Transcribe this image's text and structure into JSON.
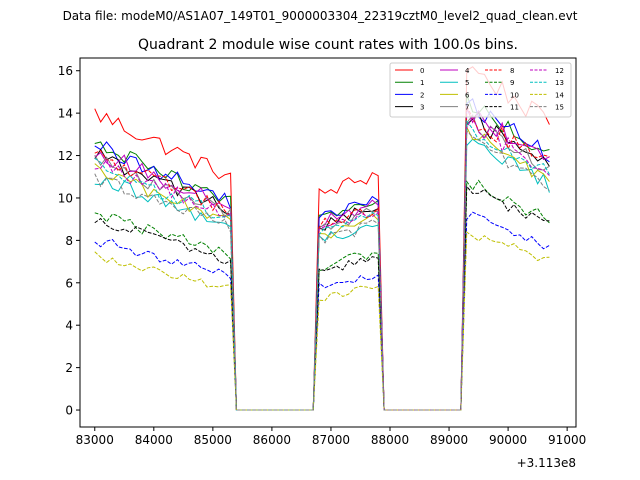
{
  "chart_data": {
    "type": "line",
    "suptitle": "Data file: modeM0/AS1A07_149T01_9000003304_22319cztM0_level2_quad_clean.evt",
    "title": "Quadrant 2 module wise count rates with 100.0s bins.",
    "xlabel": "",
    "ylabel": "",
    "x_offset_label": "+3.113e8",
    "xlim": [
      82750,
      91150
    ],
    "ylim": [
      -0.8,
      16.6
    ],
    "xticks": [
      83000,
      84000,
      85000,
      86000,
      87000,
      88000,
      89000,
      90000,
      91000
    ],
    "xtick_labels": [
      "83000",
      "84000",
      "85000",
      "86000",
      "87000",
      "88000",
      "89000",
      "90000",
      "91000"
    ],
    "yticks": [
      0,
      2,
      4,
      6,
      8,
      10,
      12,
      14,
      16
    ],
    "ytick_labels": [
      "0",
      "2",
      "4",
      "6",
      "8",
      "10",
      "12",
      "14",
      "16"
    ],
    "legend_position": "top-right",
    "good_time_intervals": [
      {
        "start": 83000,
        "end": 85350,
        "start_frac": 1.0,
        "end_frac": 0.78
      },
      {
        "start": 86730,
        "end": 87830,
        "start_frac": 0.72,
        "end_frac": 0.8
      },
      {
        "start": 89230,
        "end": 90730,
        "start_frac": 1.17,
        "end_frac": 0.96
      }
    ],
    "series": [
      {
        "name": "0",
        "color": "#ff0000",
        "dash": false,
        "level": 14.0
      },
      {
        "name": "1",
        "color": "#008000",
        "dash": false,
        "level": 12.5
      },
      {
        "name": "2",
        "color": "#0000ff",
        "dash": false,
        "level": 12.5
      },
      {
        "name": "3",
        "color": "#000000",
        "dash": false,
        "level": 12.0
      },
      {
        "name": "4",
        "color": "#bf00bf",
        "dash": false,
        "level": 12.2
      },
      {
        "name": "5",
        "color": "#00bfbf",
        "dash": false,
        "level": 11.0
      },
      {
        "name": "6",
        "color": "#bfbf00",
        "dash": false,
        "level": 11.3
      },
      {
        "name": "7",
        "color": "#808080",
        "dash": false,
        "level": 11.8
      },
      {
        "name": "8",
        "color": "#ff0000",
        "dash": true,
        "level": 12.0
      },
      {
        "name": "9",
        "color": "#008000",
        "dash": true,
        "level": 9.3
      },
      {
        "name": "10",
        "color": "#0000ff",
        "dash": true,
        "level": 8.0
      },
      {
        "name": "11",
        "color": "#000000",
        "dash": true,
        "level": 9.0
      },
      {
        "name": "12",
        "color": "#bf00bf",
        "dash": true,
        "level": 11.7
      },
      {
        "name": "13",
        "color": "#00bfbf",
        "dash": true,
        "level": 11.5
      },
      {
        "name": "14",
        "color": "#bfbf00",
        "dash": true,
        "level": 7.3
      },
      {
        "name": "15",
        "color": "#808080",
        "dash": true,
        "level": 11.0
      }
    ]
  }
}
